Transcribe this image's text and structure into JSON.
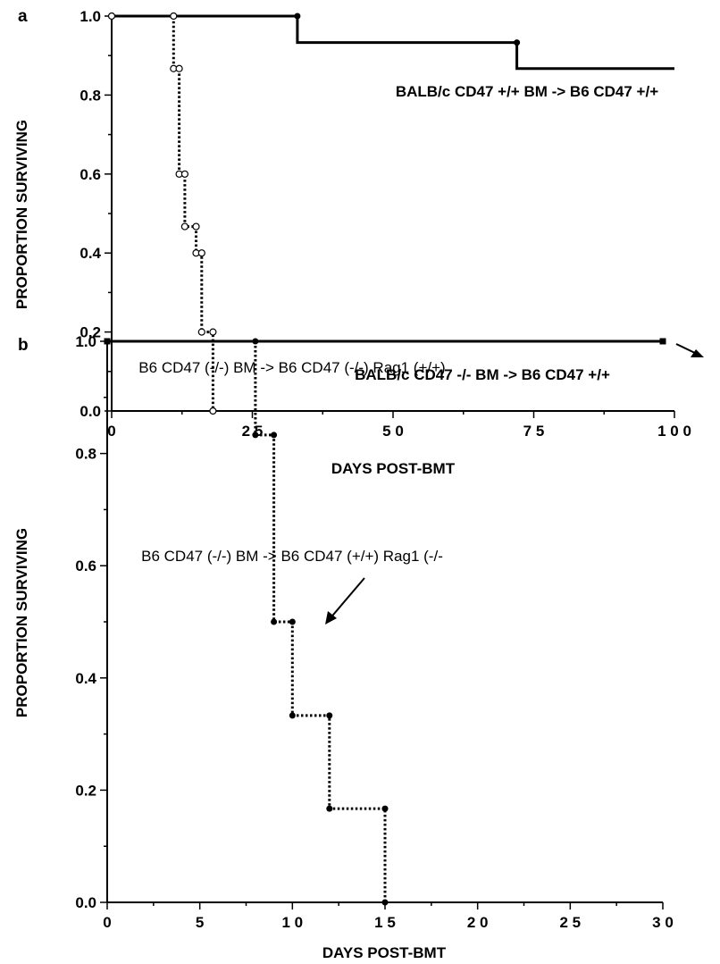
{
  "chart_data": [
    {
      "panel": "a",
      "type": "line",
      "xlabel": "DAYS POST-BMT",
      "ylabel": "PROPORTION SURVIVING",
      "xlim": [
        0,
        100
      ],
      "ylim": [
        0,
        1.0
      ],
      "x_ticks": [
        0,
        25,
        50,
        75,
        100
      ],
      "x_tick_labels": [
        "0",
        "2 5",
        "5 0",
        "7 5",
        "1 0 0"
      ],
      "y_ticks": [
        0,
        0.2,
        0.4,
        0.6,
        0.8,
        1.0
      ],
      "y_tick_labels": [
        "0.0",
        "0.2",
        "0.4",
        "0.6",
        "0.8",
        "1.0"
      ],
      "series": [
        {
          "label": "BALB/c  CD47  +/+   BM  ->  B6  CD47  +/+",
          "style": "solid",
          "marker": "filled",
          "steps": [
            [
              0,
              1.0
            ],
            [
              33,
              1.0
            ],
            [
              33,
              0.933
            ],
            [
              72,
              0.933
            ],
            [
              72,
              0.867
            ],
            [
              100,
              0.867
            ]
          ],
          "markers": [
            [
              33,
              1.0
            ],
            [
              72,
              0.933
            ]
          ]
        },
        {
          "label": "BALB/c  CD47  -/-  BM  ->  B6  CD47  +/+",
          "style": "dotted",
          "marker": "open",
          "steps": [
            [
              0,
              1.0
            ],
            [
              11,
              1.0
            ],
            [
              11,
              0.867
            ],
            [
              12,
              0.867
            ],
            [
              12,
              0.6
            ],
            [
              13,
              0.6
            ],
            [
              13,
              0.467
            ],
            [
              15,
              0.467
            ],
            [
              15,
              0.4
            ],
            [
              16,
              0.4
            ],
            [
              16,
              0.2
            ],
            [
              18,
              0.2
            ],
            [
              18,
              0.0
            ]
          ],
          "markers": [
            [
              0,
              1.0
            ],
            [
              11,
              1.0
            ],
            [
              11,
              0.867
            ],
            [
              12,
              0.867
            ],
            [
              12,
              0.6
            ],
            [
              13,
              0.6
            ],
            [
              13,
              0.467
            ],
            [
              15,
              0.467
            ],
            [
              15,
              0.4
            ],
            [
              16,
              0.4
            ],
            [
              16,
              0.2
            ],
            [
              18,
              0.2
            ],
            [
              18,
              0.0
            ]
          ]
        }
      ]
    },
    {
      "panel": "b",
      "type": "line",
      "xlabel": "DAYS POST-BMT",
      "ylabel": "PROPORTION SURVIVING",
      "xlim": [
        0,
        30
      ],
      "ylim": [
        0,
        1.0
      ],
      "x_ticks": [
        0,
        5,
        10,
        15,
        20,
        25,
        30
      ],
      "x_tick_labels": [
        "0",
        "5",
        "1 0",
        "1 5",
        "2 0",
        "2 5",
        "3 0"
      ],
      "y_ticks": [
        0,
        0.2,
        0.4,
        0.6,
        0.8,
        1.0
      ],
      "y_tick_labels": [
        "0.0",
        "0.2",
        "0.4",
        "0.6",
        "0.8",
        "1.0"
      ],
      "series": [
        {
          "label": "B6 CD47 (-/-) BM -> B6 CD47 (-/-) Rag1 (+/+)",
          "style": "solid",
          "marker": "square",
          "steps": [
            [
              0,
              1.0
            ],
            [
              30,
              1.0
            ]
          ],
          "markers": [
            [
              0,
              1.0
            ],
            [
              30,
              1.0
            ]
          ]
        },
        {
          "label": "B6 CD47 (-/-) BM -> B6 CD47 (+/+) Rag1 (-/-",
          "style": "dotted",
          "marker": "filled",
          "steps": [
            [
              8,
              1.0
            ],
            [
              8,
              0.833
            ],
            [
              9,
              0.833
            ],
            [
              9,
              0.5
            ],
            [
              10,
              0.5
            ],
            [
              10,
              0.333
            ],
            [
              12,
              0.333
            ],
            [
              12,
              0.167
            ],
            [
              15,
              0.167
            ],
            [
              15,
              0.0
            ]
          ],
          "markers": [
            [
              8,
              1.0
            ],
            [
              8,
              0.833
            ],
            [
              9,
              0.833
            ],
            [
              9,
              0.5
            ],
            [
              10,
              0.5
            ],
            [
              10,
              0.333
            ],
            [
              12,
              0.333
            ],
            [
              12,
              0.167
            ],
            [
              15,
              0.167
            ],
            [
              15,
              0.0
            ]
          ]
        }
      ]
    }
  ]
}
